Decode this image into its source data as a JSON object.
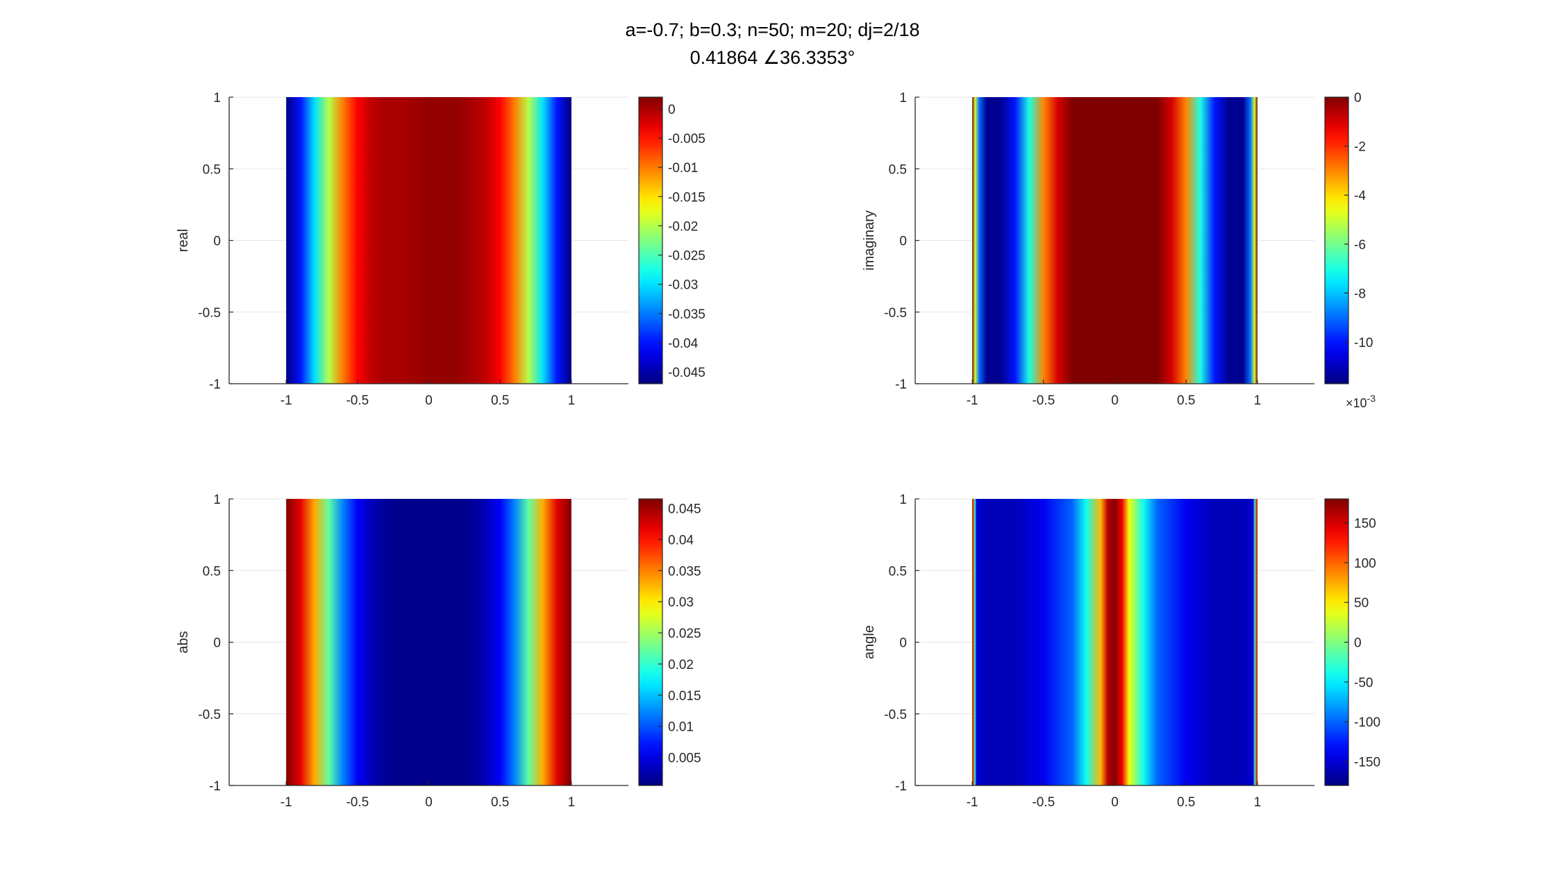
{
  "figure": {
    "title_line1": "a=-0.7; b=0.3; n=50; m=20; dj=2/18",
    "title_line2": "0.41864 ∠36.3353°"
  },
  "colormap": "jet",
  "colors": {
    "axis": "#262626",
    "grid": "#e6e6e6",
    "background": "#ffffff"
  },
  "chart_data": [
    {
      "type": "heatmap",
      "ylabel": "real",
      "xlim": [
        -1.4,
        1.4
      ],
      "ylim": [
        -1,
        1
      ],
      "xticks": [
        "-1",
        "-0.5",
        "0",
        "0.5",
        "1"
      ],
      "yticks": [
        "1",
        "0.5",
        "0",
        "-0.5",
        "-1"
      ],
      "data_x_range": [
        -1,
        1
      ],
      "x_profile": [
        -1,
        -0.9,
        -0.8,
        -0.7,
        -0.6,
        -0.5,
        -0.4,
        -0.3,
        -0.2,
        0,
        0.2,
        0.3,
        0.4,
        0.5,
        0.6,
        0.7,
        0.8,
        0.9,
        1
      ],
      "values": [
        -0.047,
        -0.04,
        -0.03,
        -0.02,
        -0.01,
        -0.004,
        -0.001,
        0.0,
        0.0,
        0.001,
        0.001,
        0.0,
        -0.001,
        -0.004,
        -0.01,
        -0.02,
        -0.03,
        -0.04,
        -0.047
      ],
      "clim": [
        -0.047,
        0.002
      ],
      "colorbar_ticks": [
        0,
        -0.005,
        -0.01,
        -0.015,
        -0.02,
        -0.025,
        -0.03,
        -0.035,
        -0.04,
        -0.045
      ],
      "colorbar_labels": [
        "0",
        "-0.005",
        "-0.01",
        "-0.015",
        "-0.02",
        "-0.025",
        "-0.03",
        "-0.035",
        "-0.04",
        "-0.045"
      ],
      "colorbar_exponent": ""
    },
    {
      "type": "heatmap",
      "ylabel": "imaginary",
      "xlim": [
        -1.4,
        1.4
      ],
      "ylim": [
        -1,
        1
      ],
      "xticks": [
        "-1",
        "-0.5",
        "0",
        "0.5",
        "1"
      ],
      "yticks": [
        "1",
        "0.5",
        "0",
        "-0.5",
        "-1"
      ],
      "data_x_range": [
        -1,
        1
      ],
      "x_profile": [
        -1,
        -0.98,
        -0.95,
        -0.9,
        -0.8,
        -0.7,
        -0.6,
        -0.5,
        -0.4,
        -0.3,
        -0.2,
        0,
        0.2,
        0.3,
        0.4,
        0.5,
        0.6,
        0.7,
        0.8,
        0.9,
        0.95,
        0.98,
        1
      ],
      "values": [
        0.0,
        -0.005,
        -0.009,
        -0.0115,
        -0.0115,
        -0.01,
        -0.007,
        -0.003,
        -0.001,
        0.0,
        0.0,
        0.0,
        0.0,
        0.0,
        -0.001,
        -0.003,
        -0.007,
        -0.01,
        -0.0115,
        -0.0115,
        -0.009,
        -0.005,
        0.0
      ],
      "clim": [
        -0.0117,
        0.0
      ],
      "colorbar_ticks": [
        0,
        -0.002,
        -0.004,
        -0.006,
        -0.008,
        -0.01
      ],
      "colorbar_labels": [
        "0",
        "-2",
        "-4",
        "-6",
        "-8",
        "-10"
      ],
      "colorbar_exponent": "×10-3"
    },
    {
      "type": "heatmap",
      "ylabel": "abs",
      "xlim": [
        -1.4,
        1.4
      ],
      "ylim": [
        -1,
        1
      ],
      "xticks": [
        "-1",
        "-0.5",
        "0",
        "0.5",
        "1"
      ],
      "yticks": [
        "1",
        "0.5",
        "0",
        "-0.5",
        "-1"
      ],
      "data_x_range": [
        -1,
        1
      ],
      "x_profile": [
        -1,
        -0.9,
        -0.8,
        -0.7,
        -0.6,
        -0.5,
        -0.4,
        -0.3,
        -0.2,
        0,
        0.2,
        0.3,
        0.4,
        0.5,
        0.6,
        0.7,
        0.8,
        0.9,
        1
      ],
      "values": [
        0.0465,
        0.042,
        0.033,
        0.022,
        0.012,
        0.006,
        0.003,
        0.0015,
        0.001,
        0.001,
        0.001,
        0.0015,
        0.003,
        0.006,
        0.012,
        0.022,
        0.033,
        0.042,
        0.0465
      ],
      "clim": [
        0.0005,
        0.0465
      ],
      "colorbar_ticks": [
        0.045,
        0.04,
        0.035,
        0.03,
        0.025,
        0.02,
        0.015,
        0.01,
        0.005
      ],
      "colorbar_labels": [
        "0.045",
        "0.04",
        "0.035",
        "0.03",
        "0.025",
        "0.02",
        "0.015",
        "0.01",
        "0.005"
      ],
      "colorbar_exponent": ""
    },
    {
      "type": "heatmap",
      "ylabel": "angle",
      "xlim": [
        -1.4,
        1.4
      ],
      "ylim": [
        -1,
        1
      ],
      "xticks": [
        "-1",
        "-0.5",
        "0",
        "0.5",
        "1"
      ],
      "yticks": [
        "1",
        "0.5",
        "0",
        "-0.5",
        "-1"
      ],
      "data_x_range": [
        -1,
        1
      ],
      "x_profile": [
        -1,
        -0.99,
        -0.98,
        -0.97,
        -0.9,
        -0.7,
        -0.5,
        -0.3,
        -0.2,
        -0.1,
        -0.05,
        0,
        0.05,
        0.1,
        0.2,
        0.3,
        0.5,
        0.7,
        0.9,
        0.97,
        0.98,
        0.99,
        1
      ],
      "values": [
        180,
        100,
        -50,
        -150,
        -160,
        -160,
        -140,
        -100,
        -40,
        70,
        160,
        178,
        140,
        40,
        -40,
        -100,
        -140,
        -160,
        -160,
        -150,
        -50,
        100,
        180
      ],
      "clim": [
        -180,
        180
      ],
      "colorbar_ticks": [
        150,
        100,
        50,
        0,
        -50,
        -100,
        -150
      ],
      "colorbar_labels": [
        "150",
        "100",
        "50",
        "0",
        "-50",
        "-100",
        "-150"
      ],
      "colorbar_exponent": ""
    }
  ]
}
